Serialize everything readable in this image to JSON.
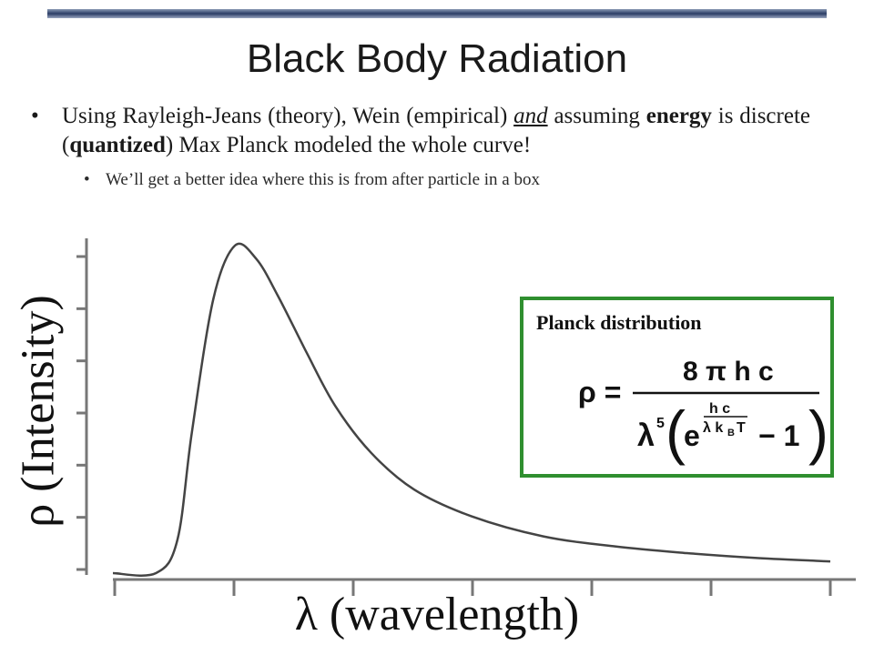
{
  "slide": {
    "title": "Black Body Radiation",
    "bullet_main": {
      "t1": "Using Rayleigh-Jeans (theory), Wein (empirical) ",
      "t2": "and",
      "t3": " assuming ",
      "t4": "energy",
      "t5": " is discrete (",
      "t6": "quantized",
      "t7": ") Max Planck modeled the whole curve!"
    },
    "bullet_sub": "We’ll get a better idea where this is from after particle in a box",
    "bullet_glyph": "•"
  },
  "formula": {
    "label": "Planck distribution",
    "lhs": "ρ =",
    "numerator": "8 π h c",
    "lambda5": "λ",
    "five": "5",
    "e": "e",
    "exp_num": "h c",
    "exp_den": "λ k",
    "exp_sub": "B",
    "exp_T": "T",
    "minus_one": "− 1",
    "border_color": "#2f8f2f"
  },
  "chart_data": {
    "type": "line",
    "xlabel": "λ (wavelength)",
    "ylabel": "ρ (Intensity)",
    "x_tick_count": 7,
    "y_tick_count": 7,
    "series": [
      {
        "x": [
          0.0,
          0.3,
          0.45,
          0.55,
          0.7,
          0.85,
          1.0,
          1.15,
          1.35,
          1.55,
          1.8,
          2.1,
          2.5,
          3.0,
          3.5,
          4.0,
          4.5,
          5.0
        ],
        "values": [
          0.0,
          0.0,
          0.1,
          0.42,
          0.82,
          0.98,
          0.94,
          0.83,
          0.66,
          0.5,
          0.36,
          0.25,
          0.17,
          0.11,
          0.08,
          0.06,
          0.045,
          0.035
        ]
      }
    ],
    "curve_color": "#444444"
  }
}
